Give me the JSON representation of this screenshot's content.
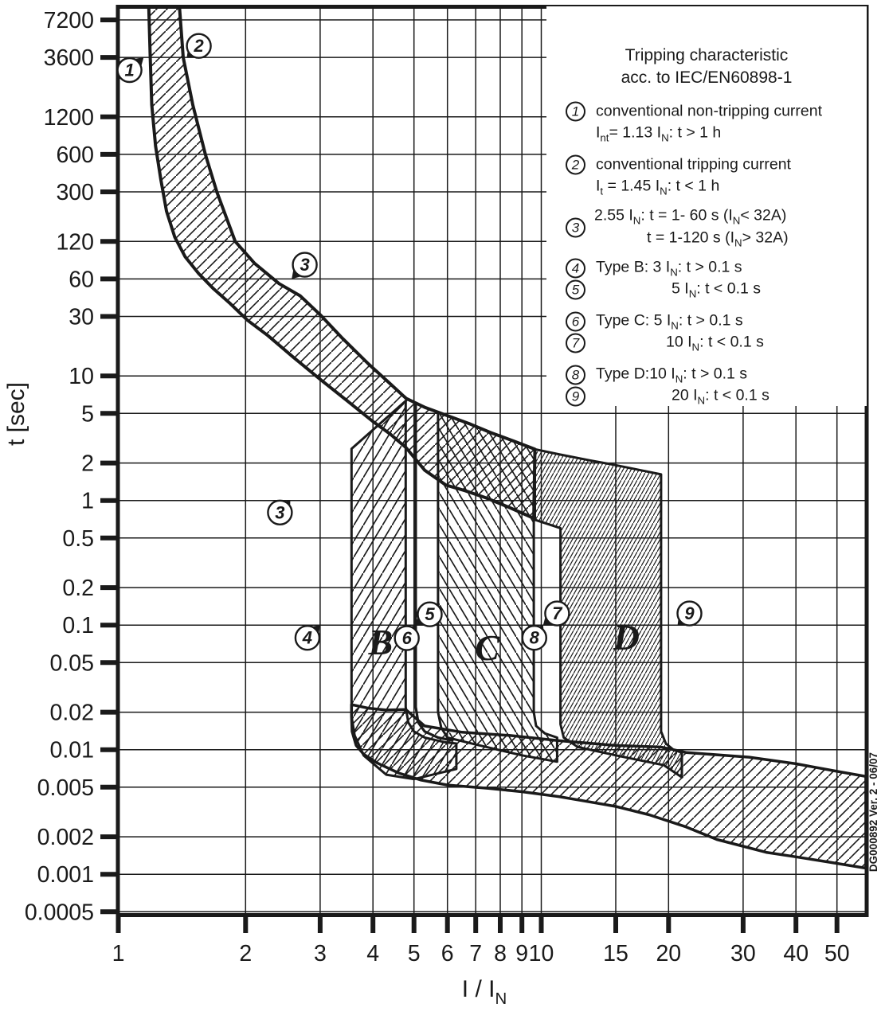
{
  "page": {
    "bg": "#ffffff",
    "ink": "#1a1a1a"
  },
  "legend": {
    "title_line1": "Tripping characteristic",
    "title_line2": "acc. to IEC/EN60898-1",
    "items": [
      {
        "num": "1",
        "lines": [
          "conventional non-tripping current",
          "I~nt~= 1.13 I~N~: t > 1 h"
        ]
      },
      {
        "num": "2",
        "lines": [
          "conventional tripping current",
          "I~t~ = 1.45 I~N~: t < 1 h"
        ]
      },
      {
        "num": "3",
        "lines": [
          "2.55 I~N~: t = 1- 60 s (I~N~< 32A)",
          "t = 1-120 s (I~N~> 32A)"
        ]
      },
      {
        "num": "4",
        "lines": [
          "Type B: 3 I~N~: t > 0.1 s"
        ]
      },
      {
        "num": "5",
        "lines": [
          "5 I~N~: t < 0.1 s"
        ]
      },
      {
        "num": "6",
        "lines": [
          "Type C: 5 I~N~: t > 0.1 s"
        ]
      },
      {
        "num": "7",
        "lines": [
          "10 I~N~: t < 0.1 s"
        ]
      },
      {
        "num": "8",
        "lines": [
          "Type D:10 I~N~: t > 0.1 s"
        ]
      },
      {
        "num": "9",
        "lines": [
          "20 I~N~: t < 0.1 s"
        ]
      }
    ]
  },
  "watermark": "DG000892 Ver. 2 - 06/07",
  "chart_data": {
    "type": "line",
    "title": "Tripping characteristic acc. to IEC/EN60898-1",
    "xlabel": "I / I~N~",
    "ylabel": "t [sec]",
    "x_log": true,
    "y_log": true,
    "xlim": [
      1,
      58.5
    ],
    "ylim": [
      0.00045,
      9500
    ],
    "grid": true,
    "x_ticks": [
      "1",
      "2",
      "3",
      "4",
      "5",
      "6",
      "7",
      "8",
      "9",
      "10",
      "15",
      "20",
      "30",
      "40",
      "50"
    ],
    "y_ticks": [
      "7200",
      "3600",
      "1200",
      "600",
      "300",
      "120",
      "60",
      "30",
      "10",
      "5",
      "2",
      "1",
      "0.5",
      "0.2",
      "0.1",
      "0.05",
      "0.02",
      "0.01",
      "0.005",
      "0.002",
      "0.001",
      "0.0005"
    ],
    "curves": {
      "upper_tripping": [
        [
          1.394,
          9500
        ],
        [
          1.424,
          3600
        ],
        [
          1.5,
          1500
        ],
        [
          1.606,
          600
        ],
        [
          1.71,
          300
        ],
        [
          1.89,
          120
        ],
        [
          2.1,
          80
        ],
        [
          2.4,
          55
        ],
        [
          2.69,
          44
        ],
        [
          3.0,
          31
        ],
        [
          3.39,
          20
        ],
        [
          3.9,
          12.5
        ],
        [
          4.4,
          8.6
        ],
        [
          4.79,
          6.6
        ],
        [
          5.3,
          5.6
        ],
        [
          6.0,
          4.8
        ],
        [
          6.8,
          4.1
        ],
        [
          7.6,
          3.5
        ],
        [
          8.6,
          3.0
        ],
        [
          9.66,
          2.58
        ]
      ],
      "lower_nontripping": [
        [
          1.18,
          9500
        ],
        [
          1.19,
          3600
        ],
        [
          1.2,
          1500
        ],
        [
          1.225,
          700
        ],
        [
          1.26,
          380
        ],
        [
          1.3,
          210
        ],
        [
          1.36,
          130
        ],
        [
          1.44,
          90
        ],
        [
          1.55,
          66
        ],
        [
          1.68,
          50
        ],
        [
          1.84,
          38
        ],
        [
          2.02,
          28
        ],
        [
          2.26,
          21
        ],
        [
          2.6,
          14
        ],
        [
          3.0,
          9.4
        ],
        [
          3.5,
          6.2
        ],
        [
          4.0,
          4.3
        ],
        [
          4.4,
          3.4
        ],
        [
          4.79,
          2.65
        ],
        [
          5.3,
          1.75
        ],
        [
          5.95,
          1.33
        ],
        [
          6.6,
          1.2
        ],
        [
          7.4,
          1.05
        ],
        [
          8.4,
          0.88
        ],
        [
          9.6,
          0.72
        ]
      ],
      "five_in_boundary": [
        [
          5.05,
          6.2
        ],
        [
          5.05,
          0.022
        ],
        [
          5.12,
          0.0165
        ],
        [
          5.3,
          0.014
        ],
        [
          5.7,
          0.0125
        ],
        [
          6.2,
          0.0118
        ]
      ]
    },
    "bands": {
      "b_band": [
        [
          3.56,
          2.6
        ],
        [
          4.78,
          6.3
        ],
        [
          4.78,
          0.022
        ],
        [
          4.85,
          0.0165
        ],
        [
          5.0,
          0.014
        ],
        [
          5.3,
          0.0125
        ],
        [
          5.9,
          0.0115
        ],
        [
          6.3,
          0.0112
        ],
        [
          6.3,
          0.007
        ],
        [
          5.0,
          0.0058
        ],
        [
          4.3,
          0.0063
        ],
        [
          3.8,
          0.009
        ],
        [
          3.62,
          0.013
        ],
        [
          3.56,
          0.0185
        ]
      ],
      "c_band": [
        [
          5.7,
          5.05
        ],
        [
          6.0,
          4.8
        ],
        [
          6.8,
          4.1
        ],
        [
          7.6,
          3.5
        ],
        [
          8.6,
          3.0
        ],
        [
          9.66,
          2.58
        ],
        [
          9.6,
          0.72
        ],
        [
          9.6,
          0.02
        ],
        [
          9.72,
          0.0155
        ],
        [
          10.2,
          0.0135
        ],
        [
          10.9,
          0.0125
        ],
        [
          10.9,
          0.008
        ],
        [
          9.0,
          0.009
        ],
        [
          7.0,
          0.011
        ],
        [
          6.0,
          0.0125
        ],
        [
          5.8,
          0.015
        ],
        [
          5.7,
          0.02
        ]
      ],
      "d_band": [
        [
          9.66,
          2.58
        ],
        [
          11,
          2.35
        ],
        [
          13,
          2.1
        ],
        [
          15,
          1.92
        ],
        [
          17,
          1.76
        ],
        [
          19.2,
          1.62
        ],
        [
          19.2,
          0.014
        ],
        [
          19.7,
          0.0112
        ],
        [
          20.6,
          0.0099
        ],
        [
          21.5,
          0.0095
        ],
        [
          21.5,
          0.006
        ],
        [
          19.5,
          0.0075
        ],
        [
          15,
          0.009
        ],
        [
          12.2,
          0.0105
        ],
        [
          11.3,
          0.0125
        ],
        [
          11.1,
          0.016
        ],
        [
          11.1,
          0.6
        ],
        [
          9.66,
          0.7
        ]
      ],
      "bottom_band": [
        [
          4.78,
          0.021
        ],
        [
          5.3,
          0.0155
        ],
        [
          6.5,
          0.0138
        ],
        [
          8.4,
          0.013
        ],
        [
          11,
          0.0118
        ],
        [
          15,
          0.0108
        ],
        [
          19.2,
          0.0105
        ],
        [
          22,
          0.0095
        ],
        [
          27,
          0.009
        ],
        [
          31,
          0.0087
        ],
        [
          40,
          0.0077
        ],
        [
          50,
          0.0067
        ],
        [
          58.5,
          0.0061
        ],
        [
          58.5,
          0.00112
        ],
        [
          48,
          0.00125
        ],
        [
          40,
          0.00138
        ],
        [
          34,
          0.0015
        ],
        [
          31,
          0.00163
        ],
        [
          26,
          0.0019
        ],
        [
          22,
          0.0024
        ],
        [
          18,
          0.003
        ],
        [
          15,
          0.0035
        ],
        [
          12.5,
          0.0039
        ],
        [
          11,
          0.0042
        ],
        [
          9,
          0.0046
        ],
        [
          7.5,
          0.0049
        ],
        [
          6,
          0.0052
        ],
        [
          5.2,
          0.0057
        ],
        [
          4.6,
          0.0065
        ],
        [
          4.1,
          0.0078
        ],
        [
          3.8,
          0.0092
        ],
        [
          3.65,
          0.0108
        ],
        [
          3.57,
          0.014
        ],
        [
          3.56,
          0.0185
        ],
        [
          3.56,
          0.023
        ],
        [
          3.9,
          0.0215
        ],
        [
          4.3,
          0.0208
        ]
      ]
    },
    "markers": [
      {
        "num": "1",
        "circle": [
          1.063,
          2850
        ],
        "tip": [
          1.148,
          3600
        ]
      },
      {
        "num": "2",
        "circle": [
          1.55,
          4450
        ],
        "tip": [
          1.452,
          3600
        ]
      },
      {
        "num": "3",
        "circle": [
          2.76,
          78
        ],
        "tip": [
          2.57,
          60
        ]
      },
      {
        "num": "3",
        "circle": [
          2.41,
          0.8
        ],
        "tip": [
          2.55,
          1.0
        ]
      },
      {
        "num": "4",
        "circle": [
          2.8,
          0.079
        ],
        "tip": [
          3.0,
          0.1
        ]
      },
      {
        "num": "5",
        "circle": [
          5.45,
          0.122
        ],
        "tip": [
          5.04,
          0.1
        ]
      },
      {
        "num": "6",
        "circle": [
          4.81,
          0.0785
        ],
        "tip": [
          5.04,
          0.1
        ]
      },
      {
        "num": "7",
        "circle": [
          10.9,
          0.124
        ],
        "tip": [
          10.1,
          0.1
        ]
      },
      {
        "num": "8",
        "circle": [
          9.63,
          0.079
        ],
        "tip": [
          10.1,
          0.1
        ]
      },
      {
        "num": "9",
        "circle": [
          22.4,
          0.124
        ],
        "tip": [
          21.0,
          0.1
        ]
      }
    ],
    "zone_letters": [
      {
        "label": "B",
        "x": 4.17,
        "t": 0.0735
      },
      {
        "label": "C",
        "x": 7.45,
        "t": 0.0662
      },
      {
        "label": "D",
        "x": 15.9,
        "t": 0.0805
      }
    ]
  }
}
